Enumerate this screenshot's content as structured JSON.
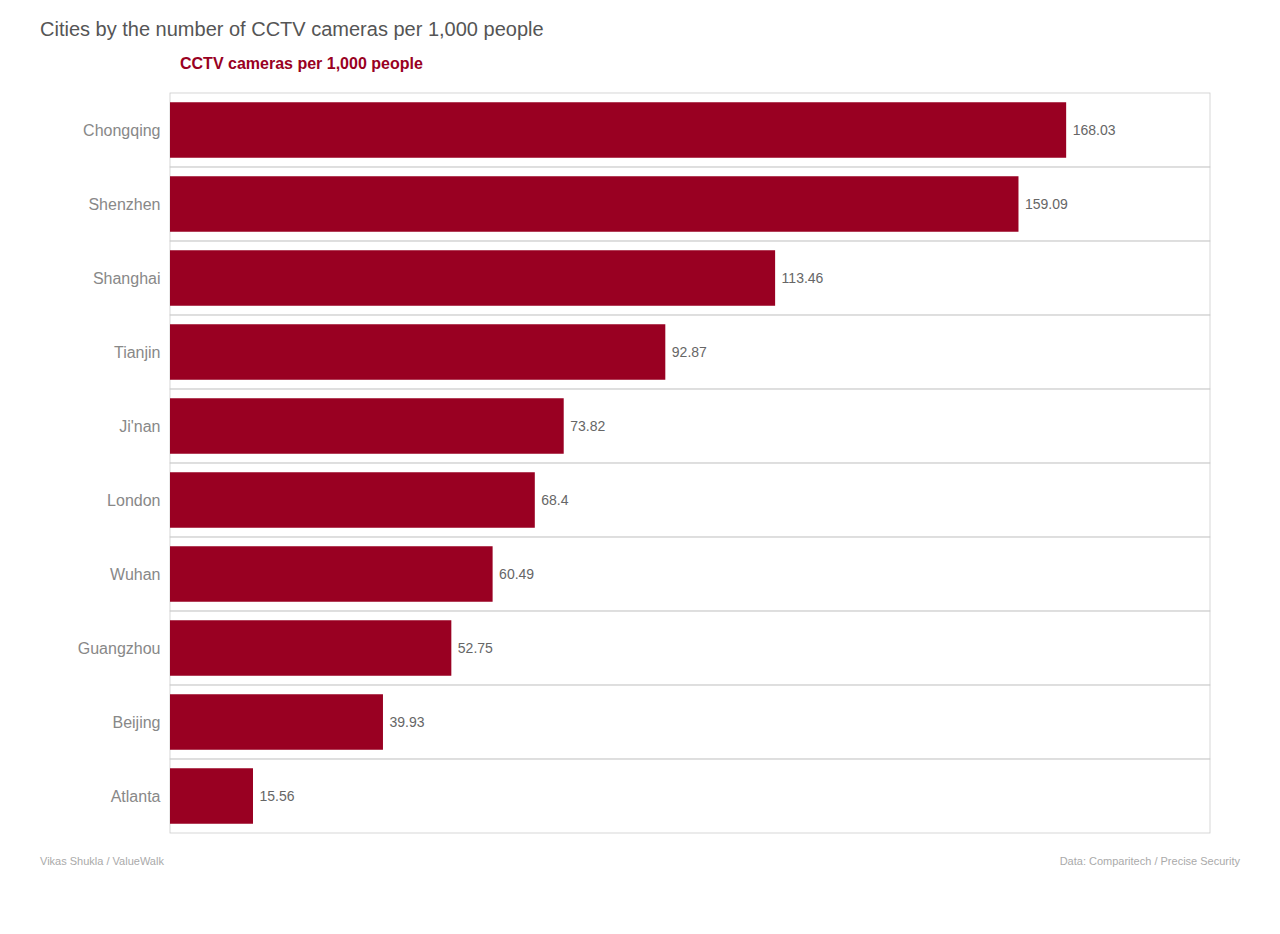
{
  "chart_data": {
    "type": "bar",
    "orientation": "horizontal",
    "title": "Cities by the number of CCTV cameras per 1,000 people",
    "subtitle": "CCTV cameras per 1,000 people",
    "categories": [
      "Chongqing",
      "Shenzhen",
      "Shanghai",
      "Tianjin",
      "Ji'nan",
      "London",
      "Wuhan",
      "Guangzhou",
      "Beijing",
      "Atlanta"
    ],
    "values": [
      168.03,
      159.09,
      113.46,
      92.87,
      73.82,
      68.4,
      60.49,
      52.75,
      39.93,
      15.56
    ],
    "color": "#990022",
    "xlim": [
      0,
      195
    ],
    "grid": true,
    "data_labels": true,
    "tick_labels": "y",
    "annotations": [
      "Vikas Shukla / ValueWalk",
      "Data: Comparitech / Precise Security"
    ]
  }
}
